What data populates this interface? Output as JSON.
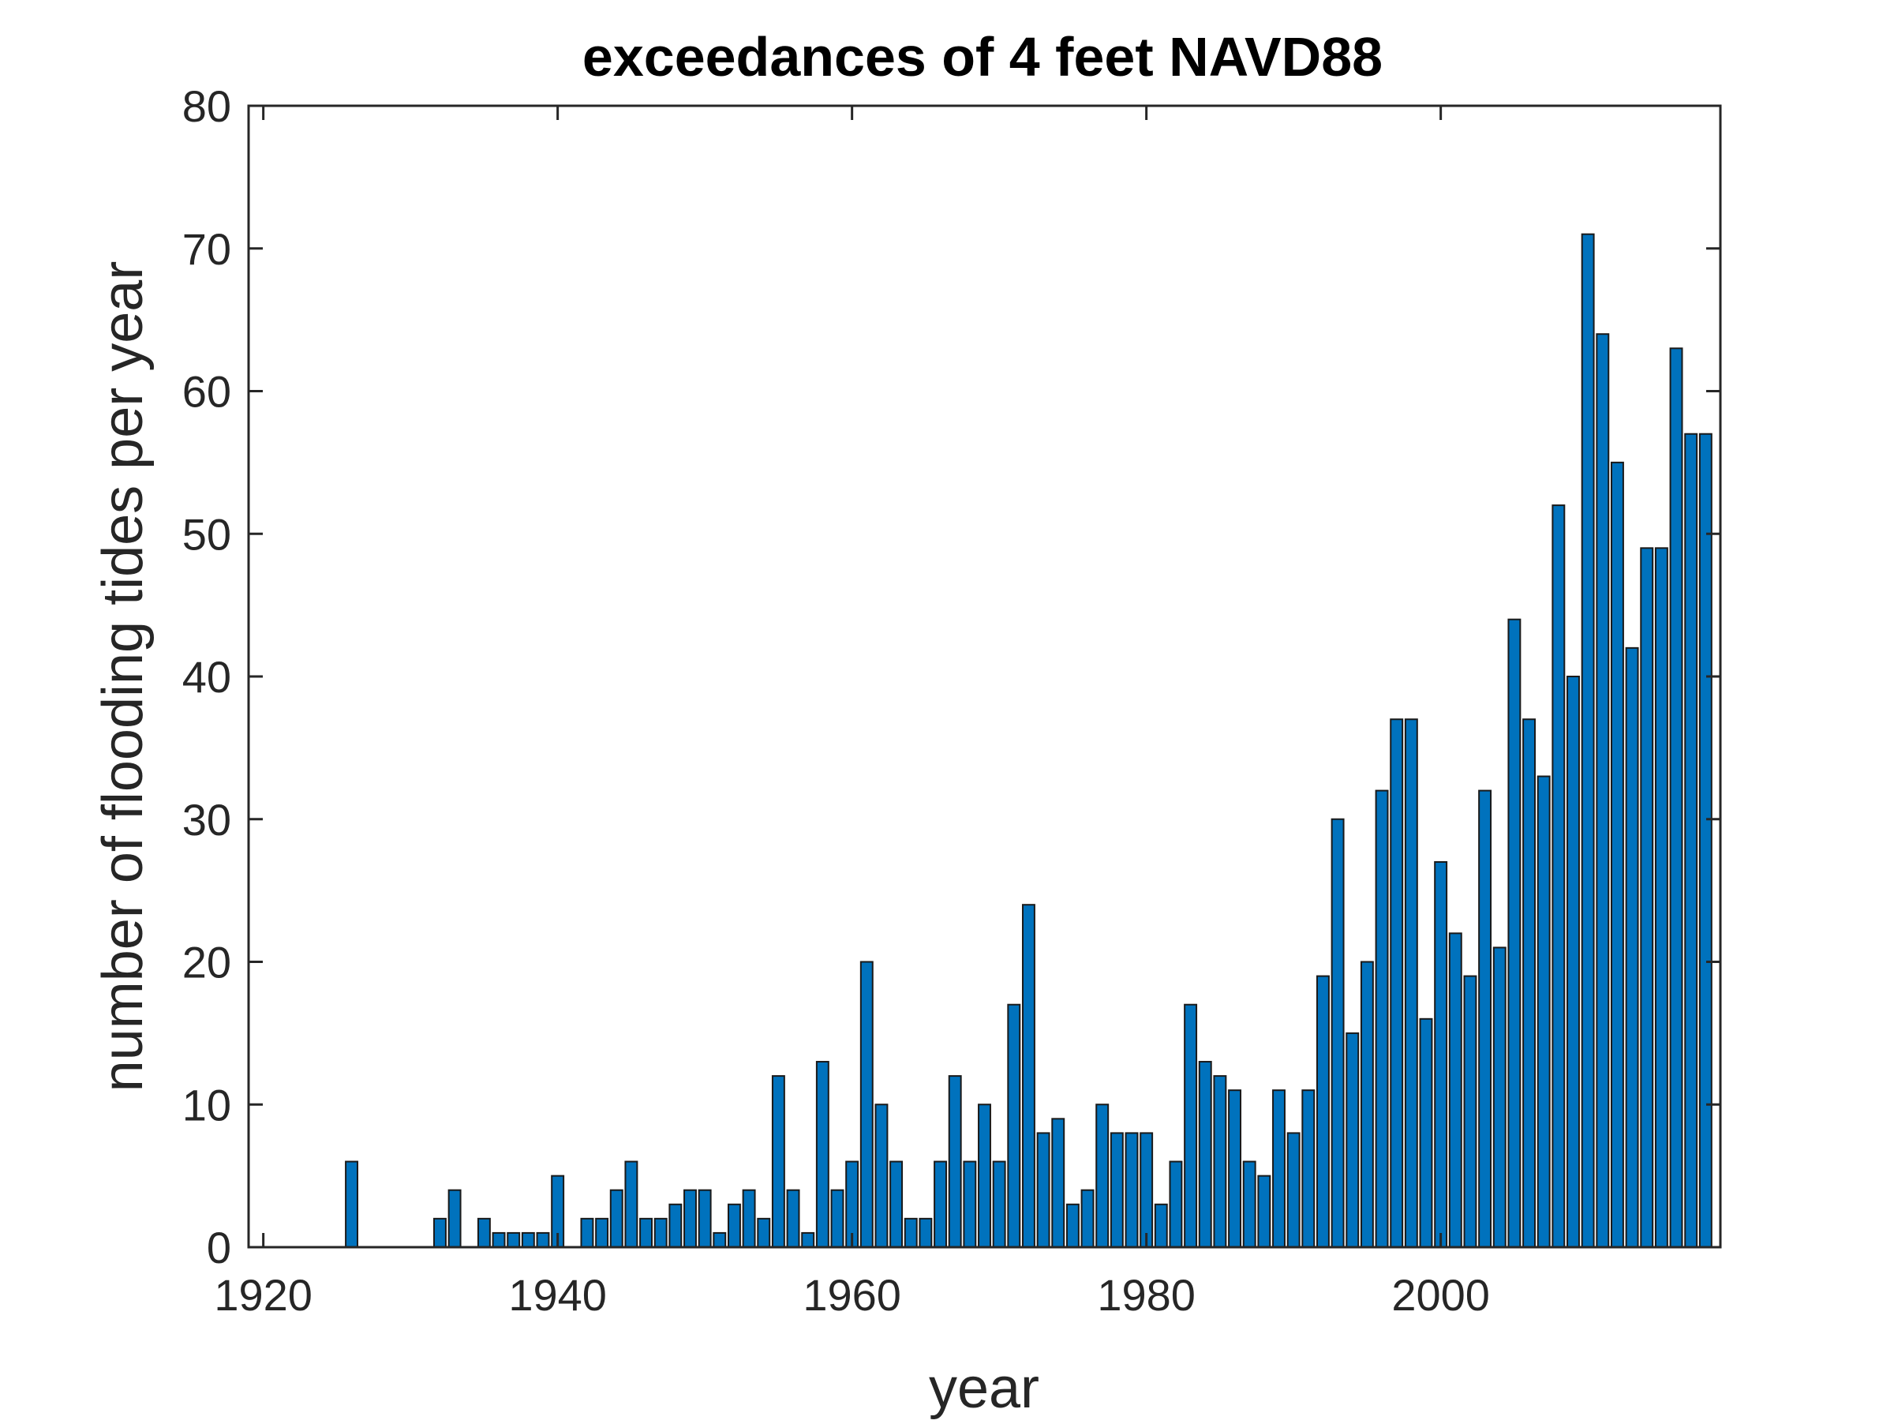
{
  "chart_data": {
    "type": "bar",
    "title": "exceedances of 4 feet NAVD88",
    "xlabel": "year",
    "ylabel": "number of flooding tides per year",
    "xlim": [
      1919,
      2019
    ],
    "ylim": [
      0,
      80
    ],
    "xticks": [
      1920,
      1940,
      1960,
      1980,
      2000
    ],
    "yticks": [
      0,
      10,
      20,
      30,
      40,
      50,
      60,
      70,
      80
    ],
    "grid": false,
    "box": true,
    "bar_color": "#0072BD",
    "bar_edge_color": "#1a1a1a",
    "series": [
      {
        "x": [
          1926,
          1932,
          1933,
          1935,
          1936,
          1937,
          1938,
          1939,
          1940,
          1942,
          1943,
          1944,
          1945,
          1946,
          1947,
          1948,
          1949,
          1950,
          1951,
          1952,
          1953,
          1954,
          1955,
          1956,
          1957,
          1958,
          1959,
          1960,
          1961,
          1962,
          1963,
          1964,
          1965,
          1966,
          1967,
          1968,
          1969,
          1970,
          1971,
          1972,
          1973,
          1974,
          1975,
          1976,
          1977,
          1978,
          1979,
          1980,
          1981,
          1982,
          1983,
          1984,
          1985,
          1986,
          1987,
          1988,
          1989,
          1990,
          1991,
          1992,
          1993,
          1994,
          1995,
          1996,
          1997,
          1998,
          1999,
          2000,
          2001,
          2002,
          2003,
          2004,
          2005,
          2006,
          2007,
          2008,
          2009,
          2010,
          2011,
          2012,
          2013,
          2014,
          2015,
          2016,
          2017,
          2018
        ],
        "values": [
          6,
          2,
          4,
          2,
          1,
          1,
          1,
          1,
          5,
          2,
          2,
          4,
          6,
          2,
          2,
          3,
          4,
          4,
          1,
          3,
          4,
          2,
          12,
          4,
          1,
          13,
          4,
          6,
          20,
          10,
          6,
          2,
          2,
          6,
          12,
          6,
          10,
          6,
          17,
          24,
          8,
          9,
          3,
          4,
          10,
          8,
          8,
          8,
          3,
          6,
          17,
          13,
          12,
          11,
          6,
          5,
          11,
          8,
          11,
          19,
          30,
          15,
          20,
          32,
          37,
          37,
          16,
          27,
          22,
          19,
          32,
          21,
          44,
          37,
          33,
          52,
          40,
          71,
          64,
          55,
          42,
          49,
          49,
          63,
          57,
          57
        ]
      }
    ]
  }
}
